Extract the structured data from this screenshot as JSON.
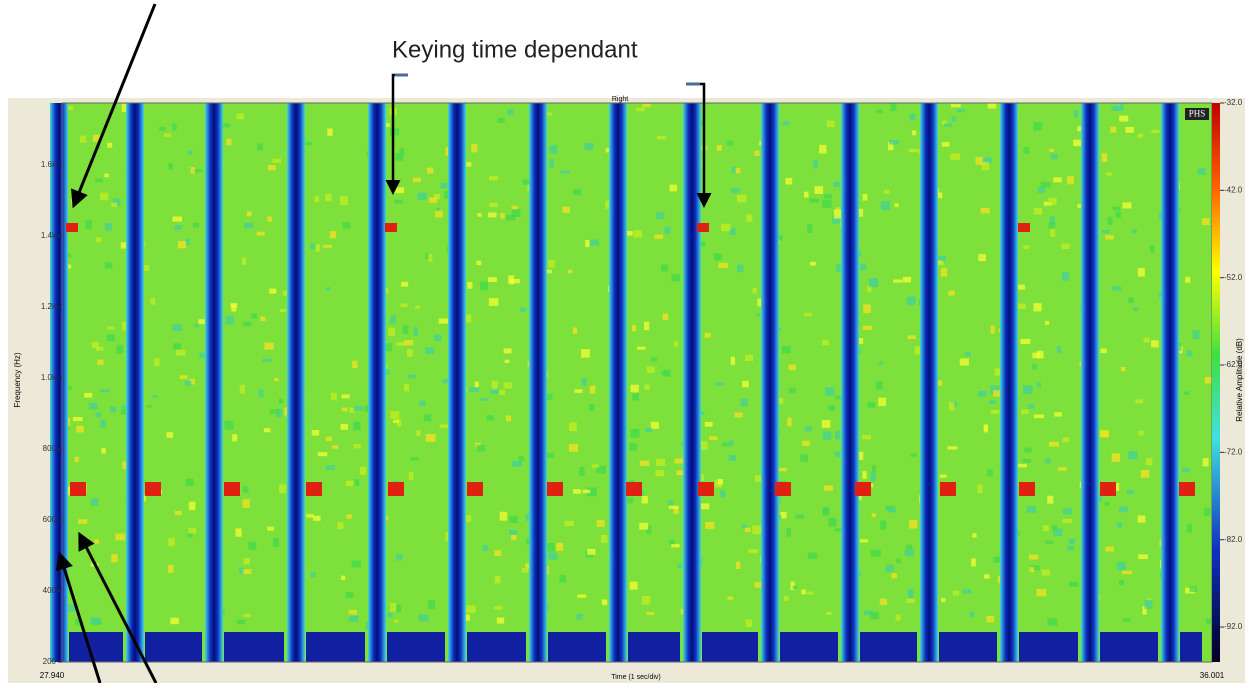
{
  "annotation": "Keying time dependant",
  "chart_data": {
    "type": "spectrogram",
    "title": "Right",
    "badge": "PHS",
    "x_label": "Time (1 sec/div)",
    "y_label": "Frequency (Hz)",
    "colorbar_label": "Relative Amplitude (dB)",
    "x_start_label": "27.940",
    "x_end_label": "36.001",
    "ylim": [
      200,
      1775
    ],
    "yticks": [
      200,
      400,
      600,
      800,
      {
        "value": 1000,
        "label": "1.0k"
      },
      {
        "value": 1200,
        "label": "1.2k"
      },
      {
        "value": 1400,
        "label": "1.4k"
      },
      {
        "value": 1600,
        "label": "1.6k"
      }
    ],
    "clim": [
      -96,
      -32
    ],
    "cticks": [
      {
        "value": -32,
        "label": "-32.0"
      },
      {
        "value": -42,
        "label": "-42.0"
      },
      {
        "value": -52,
        "label": "-52.0"
      },
      {
        "value": -62,
        "label": "-62.0"
      },
      {
        "value": -72,
        "label": "-72.0"
      },
      {
        "value": -82,
        "label": "-82.0"
      },
      {
        "value": -92,
        "label": "-92.0"
      }
    ]
  }
}
